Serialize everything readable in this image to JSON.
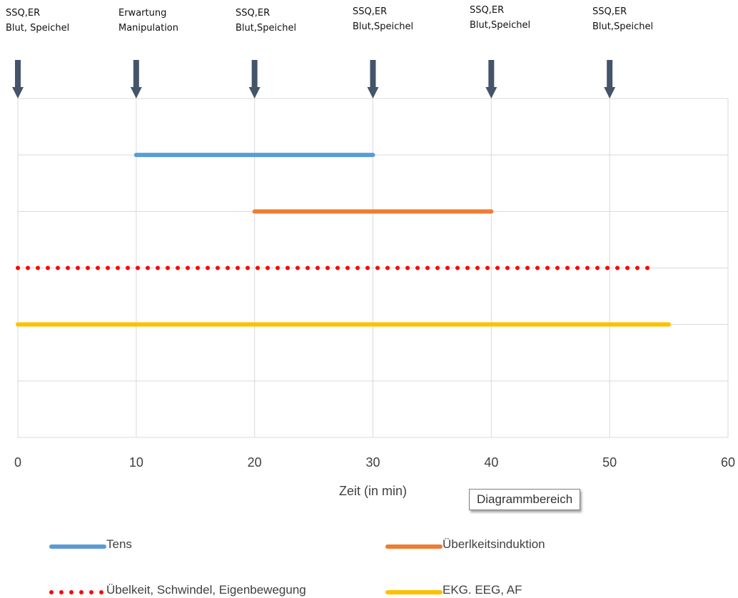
{
  "chart_data": {
    "type": "line",
    "xlabel": "Zeit (in min)",
    "xlim": [
      0,
      60
    ],
    "x_ticks": [
      0,
      10,
      20,
      30,
      40,
      50,
      60
    ],
    "rows": 6,
    "series": [
      {
        "name": "Tens",
        "x": [
          10,
          30
        ],
        "row": 1,
        "color": "#5b9bd5",
        "style": "solid"
      },
      {
        "name": "Überlkeitsinduktion",
        "x": [
          20,
          40
        ],
        "row": 2,
        "color": "#ed7d31",
        "style": "solid"
      },
      {
        "name": "Übelkeit, Schwindel, Eigenbewegung",
        "x": [
          0,
          54
        ],
        "row": 3,
        "color": "#ff0000",
        "style": "dotted"
      },
      {
        "name": "EKG. EEG, AF",
        "x": [
          0,
          55
        ],
        "row": 4,
        "color": "#ffc000",
        "style": "solid"
      }
    ],
    "annotations": [
      {
        "x": 0,
        "line1": "SSQ,ER",
        "line2": "Blut, Speichel"
      },
      {
        "x": 10,
        "line1": "Erwartung",
        "line2": "Manipulation"
      },
      {
        "x": 20,
        "line1": "SSQ,ER",
        "line2": "Blut,Speichel"
      },
      {
        "x": 30,
        "line1": "SSQ,ER",
        "line2": "Blut,Speichel"
      },
      {
        "x": 40,
        "line1": "SSQ,ER",
        "line2": "Blut,Speichel"
      },
      {
        "x": 50,
        "line1": "SSQ,ER",
        "line2": "Blut,Speichel"
      }
    ],
    "arrow_color": "#44546a",
    "grid": true,
    "legend_position": "bottom"
  },
  "tooltip": "Diagrammbereich"
}
